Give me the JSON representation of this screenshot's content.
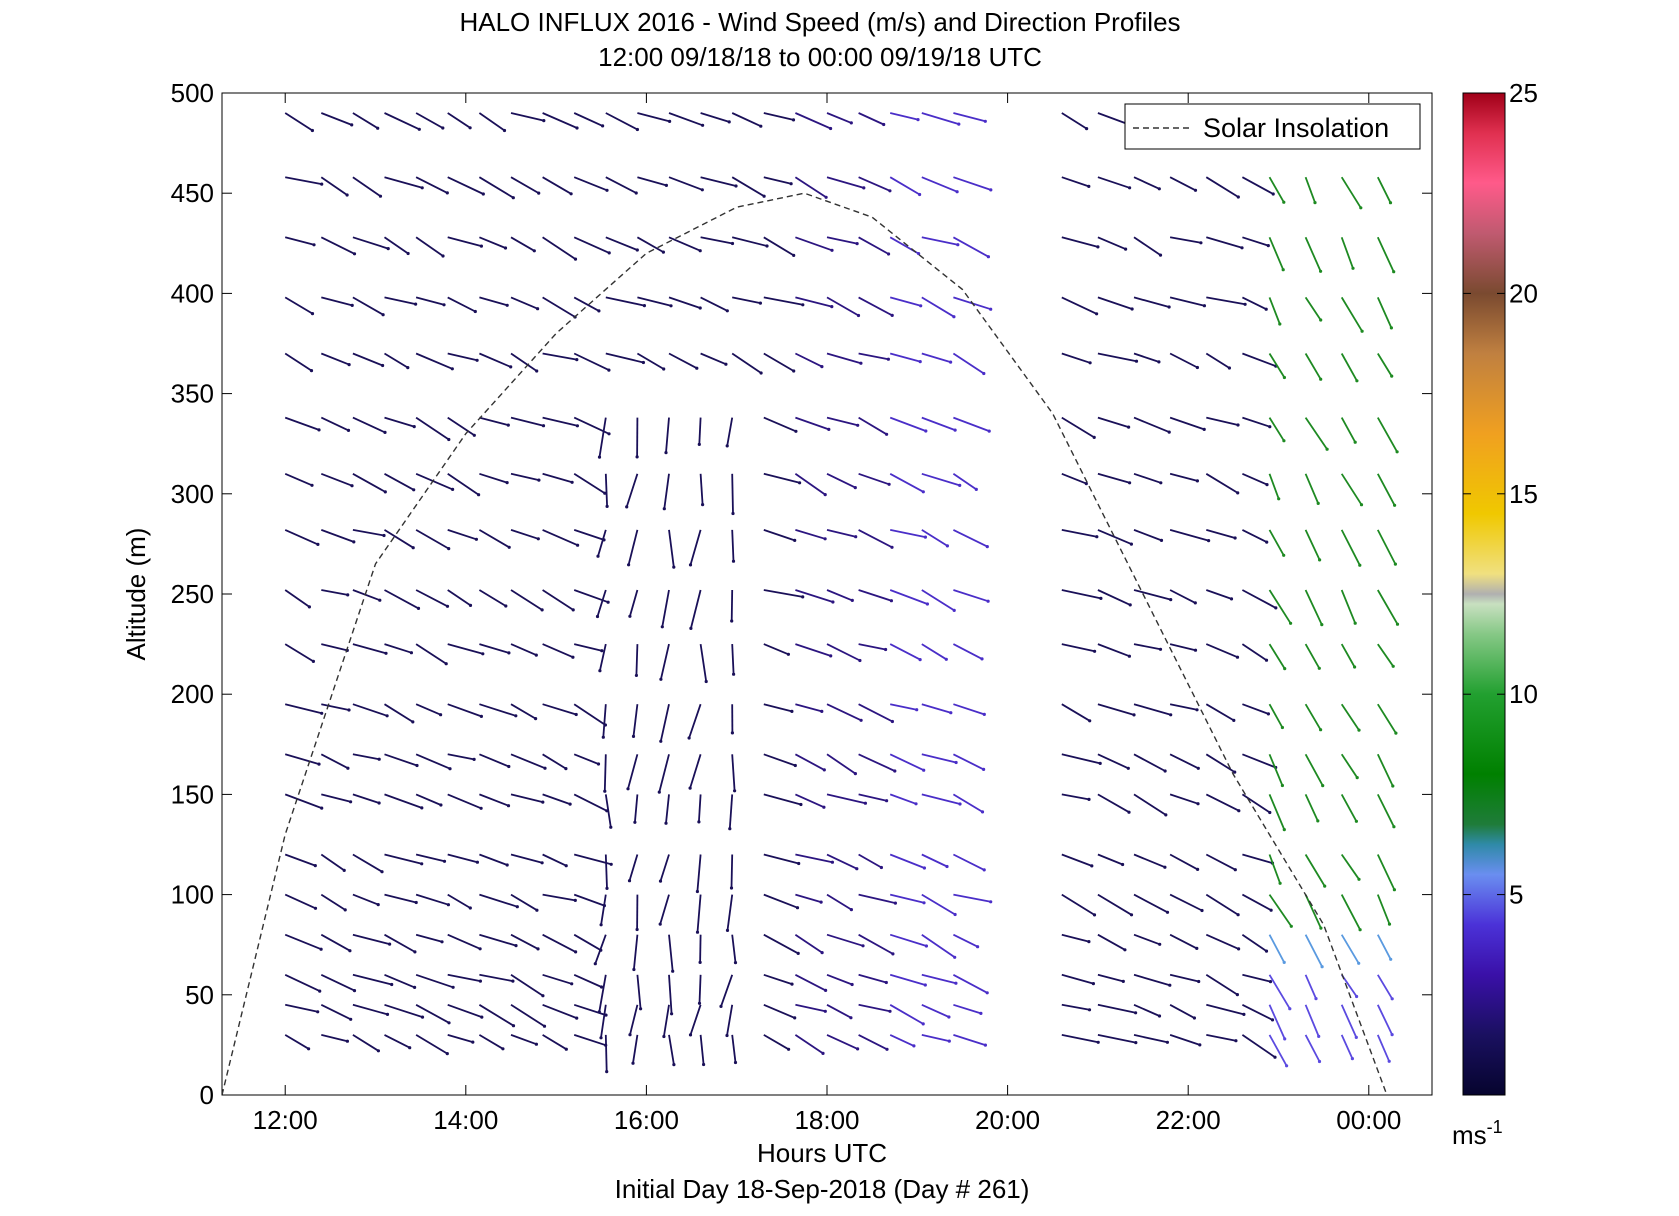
{
  "chart_data": {
    "type": "quiver",
    "title": "HALO INFLUX 2016 - Wind Speed (m/s) and Direction Profiles",
    "subtitle": "12:00 09/18/18 to 00:00 09/19/18  UTC",
    "xlabel": "Hours UTC",
    "xlabel2": "Initial Day 18-Sep-2018 (Day # 261)",
    "ylabel": "Altitude (m)",
    "xlim": [
      11.3,
      24.7
    ],
    "ylim": [
      0,
      500
    ],
    "xticks": [
      12,
      14,
      16,
      18,
      20,
      22,
      24
    ],
    "xtick_labels": [
      "12:00",
      "14:00",
      "16:00",
      "18:00",
      "20:00",
      "22:00",
      "00:00"
    ],
    "yticks": [
      0,
      50,
      100,
      150,
      200,
      250,
      300,
      350,
      400,
      450,
      500
    ],
    "ytick_labels": [
      "0",
      "50",
      "100",
      "150",
      "200",
      "250",
      "300",
      "350",
      "400",
      "450",
      "500"
    ],
    "colorbar": {
      "range": [
        0,
        25
      ],
      "ticks": [
        5,
        10,
        15,
        20,
        25
      ],
      "tick_labels": [
        "5",
        "10",
        "15",
        "20",
        "25"
      ],
      "unit_base": "ms",
      "unit_exp": "-1"
    },
    "legend": {
      "position": "top-right",
      "entries": [
        "Solar Insolation"
      ]
    },
    "solar_insolation": {
      "style": "dashed",
      "x": [
        11.3,
        12,
        13,
        14,
        15,
        16,
        17,
        17.75,
        18.5,
        19.5,
        20.5,
        21.5,
        22.5,
        23.5,
        24.2
      ],
      "y": [
        0,
        130,
        265,
        330,
        380,
        420,
        443,
        450,
        438,
        402,
        340,
        250,
        160,
        85,
        0
      ]
    },
    "time_columns": [
      12,
      12.4,
      12.75,
      13.1,
      13.45,
      13.8,
      14.15,
      14.5,
      14.85,
      15.2,
      15.55,
      15.9,
      16.25,
      16.6,
      16.95,
      17.3,
      17.65,
      18.0,
      18.35,
      18.7,
      19.05,
      19.4,
      20.6,
      21.0,
      21.4,
      21.8,
      22.2,
      22.6,
      22.9,
      23.3,
      23.7,
      24.1
    ],
    "altitude_levels": [
      30,
      45,
      60,
      80,
      100,
      120,
      150,
      170,
      195,
      225,
      252,
      282,
      310,
      338,
      370,
      398,
      428,
      458,
      490
    ]
  }
}
